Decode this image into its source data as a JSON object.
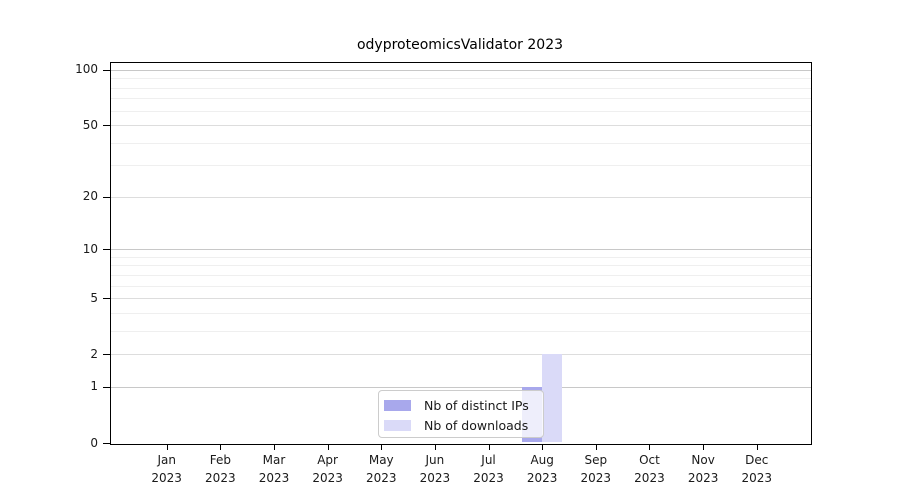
{
  "chart_data": {
    "type": "bar",
    "title": "odyproteomicsValidator 2023",
    "categories": [
      "Jan",
      "Feb",
      "Mar",
      "Apr",
      "May",
      "Jun",
      "Jul",
      "Aug",
      "Sep",
      "Oct",
      "Nov",
      "Dec"
    ],
    "category_year": "2023",
    "series": [
      {
        "name": "Nb of distinct IPs",
        "color": "#a8a8ec",
        "values": [
          0,
          0,
          0,
          0,
          0,
          0,
          0,
          1,
          0,
          0,
          0,
          0
        ]
      },
      {
        "name": "Nb of downloads",
        "color": "#dadaf8",
        "values": [
          0,
          0,
          0,
          0,
          0,
          0,
          0,
          2,
          0,
          0,
          0,
          0
        ]
      }
    ],
    "xlabel": "",
    "ylabel": "",
    "yscale": "log1p",
    "ylim": [
      0,
      110
    ],
    "y_tick_values": [
      0,
      1,
      2,
      5,
      10,
      20,
      50,
      100
    ],
    "y_gridlines": {
      "emphasis": [
        1,
        10,
        100
      ],
      "secondary": [
        2,
        5,
        20,
        50
      ],
      "minor": [
        3,
        4,
        6,
        7,
        8,
        9,
        30,
        40,
        60,
        70,
        80,
        90
      ]
    },
    "grid": "horizontal",
    "legend_position": "inside-bottom-center"
  },
  "colors": {
    "axis": "#000000",
    "text": "#1a1a1a",
    "grid_emphasis": "#c8c8c8",
    "grid_secondary": "#dddddd",
    "grid_minor": "#efefef",
    "legend_border": "#cccccc",
    "background": "#ffffff"
  }
}
